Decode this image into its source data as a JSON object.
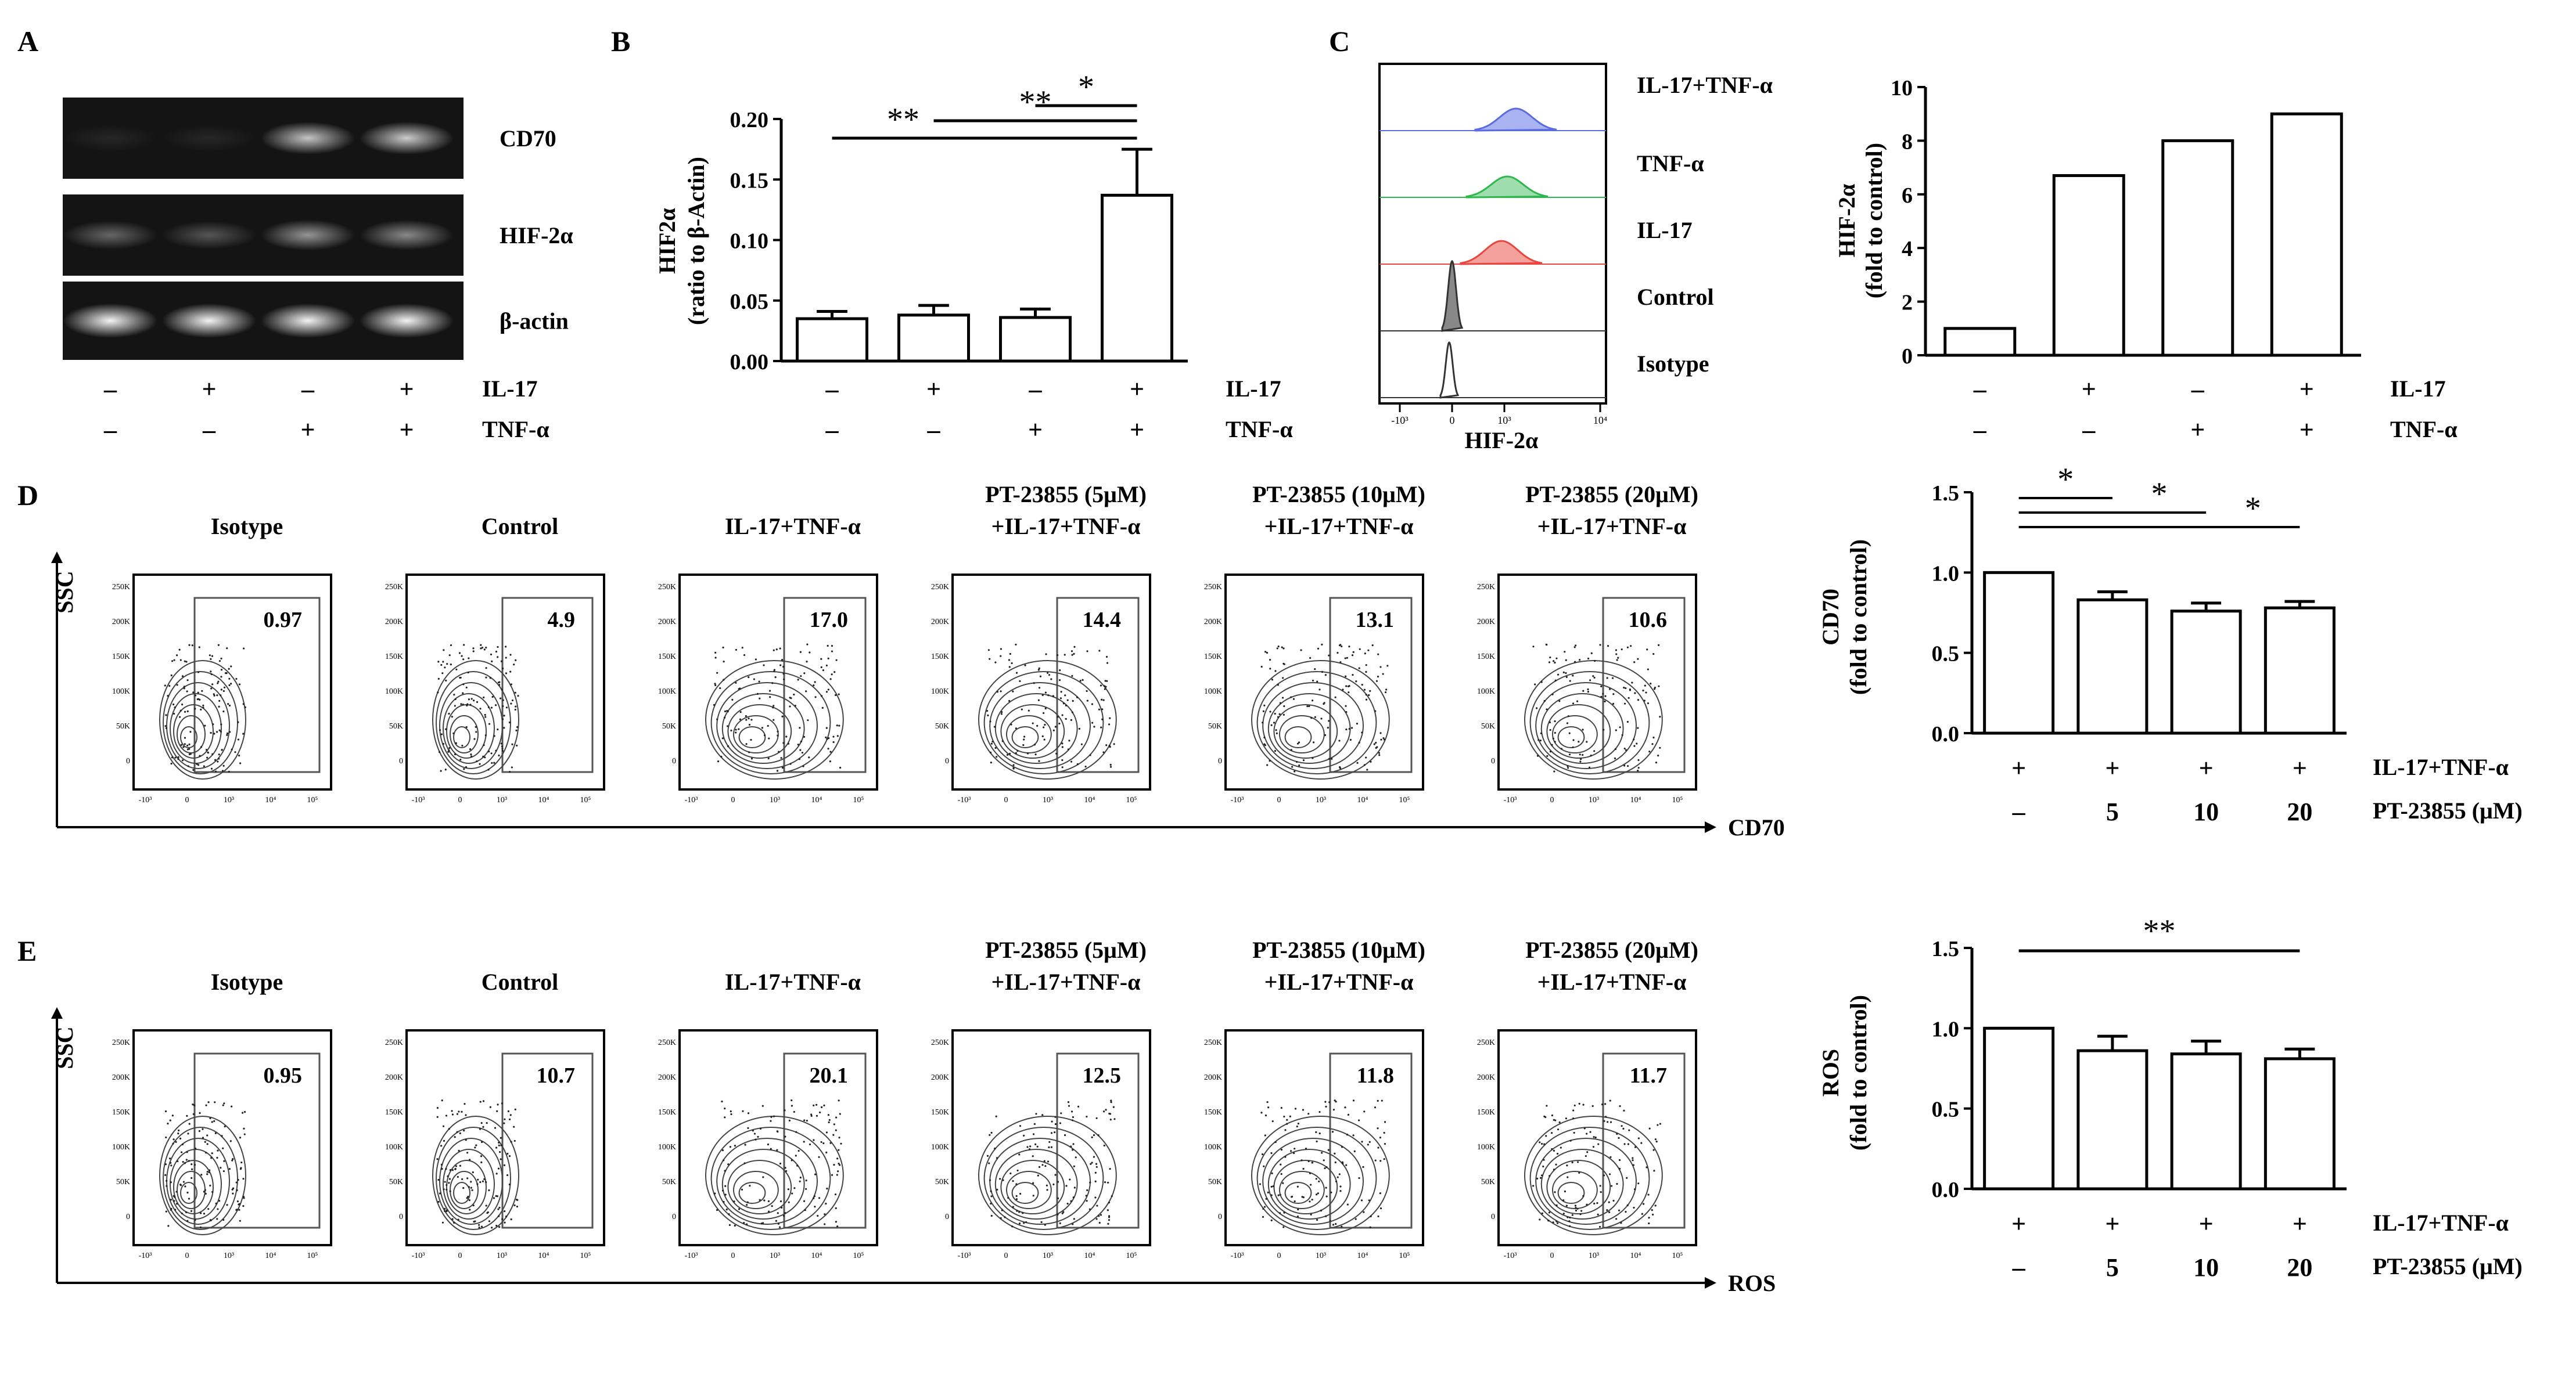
{
  "panels": {
    "a": {
      "letter": "A",
      "bands": [
        "CD70",
        "HIF-2α",
        "β-actin"
      ],
      "lanes": [
        {
          "il17": "–",
          "tnf": "–"
        },
        {
          "il17": "+",
          "tnf": "–"
        },
        {
          "il17": "–",
          "tnf": "+"
        },
        {
          "il17": "+",
          "tnf": "+"
        }
      ],
      "band_intensity": {
        "CD70": [
          0.08,
          0.08,
          0.75,
          0.78
        ],
        "HIF-2α": [
          0.35,
          0.28,
          0.55,
          0.5
        ],
        "β-actin": [
          0.95,
          0.95,
          0.95,
          0.95
        ]
      },
      "row_labels": {
        "il17": "IL-17",
        "tnf": "TNF-α"
      }
    },
    "b": {
      "letter": "B",
      "ylabel_line1": "HIF2α",
      "ylabel_line2": "(ratio to β-Actin)",
      "sig_labels": [
        "**",
        "**",
        "*"
      ],
      "row_labels": {
        "il17": "IL-17",
        "tnf": "TNF-α"
      },
      "signs": [
        {
          "il17": "–",
          "tnf": "–"
        },
        {
          "il17": "+",
          "tnf": "–"
        },
        {
          "il17": "–",
          "tnf": "+"
        },
        {
          "il17": "+",
          "tnf": "+"
        }
      ]
    },
    "c": {
      "letter": "C",
      "hist_labels": [
        "IL-17+TNF-α",
        "TNF-α",
        "IL-17",
        "Control",
        "Isotype"
      ],
      "hist_colors": [
        "#5b6be0",
        "#2db84e",
        "#e8473f",
        "#333333",
        "#333333"
      ],
      "hist_fills": [
        "#a9b3f2",
        "#9fdcae",
        "#f4a19c",
        "#888888",
        "#ffffff"
      ],
      "xaxis_label": "HIF-2α",
      "xticks": [
        "-10³",
        "0",
        "10³",
        "10⁴"
      ],
      "ylabel_line1": "HIF-2α",
      "ylabel_line2": "(fold to control)",
      "row_labels": {
        "il17": "IL-17",
        "tnf": "TNF-α"
      },
      "signs": [
        {
          "il17": "–",
          "tnf": "–"
        },
        {
          "il17": "+",
          "tnf": "–"
        },
        {
          "il17": "–",
          "tnf": "+"
        },
        {
          "il17": "+",
          "tnf": "+"
        }
      ]
    },
    "d": {
      "letter": "D",
      "plots": [
        {
          "title1": "Isotype",
          "title2": "",
          "pct": "0.97"
        },
        {
          "title1": "Control",
          "title2": "",
          "pct": "4.9"
        },
        {
          "title1": "IL-17+TNF-α",
          "title2": "",
          "pct": "17.0"
        },
        {
          "title1": "PT-23855 (5μM)",
          "title2": "+IL-17+TNF-α",
          "pct": "14.4"
        },
        {
          "title1": "PT-23855 (10μM)",
          "title2": "+IL-17+TNF-α",
          "pct": "13.1"
        },
        {
          "title1": "PT-23855 (20μM)",
          "title2": "+IL-17+TNF-α",
          "pct": "10.6"
        }
      ],
      "y_axis": "SSC",
      "x_axis": "CD70",
      "ylabel_line1": "CD70",
      "ylabel_line2": "(fold to control)",
      "sig_labels": [
        "*",
        "*",
        "*"
      ],
      "row1_label": "IL-17+TNF-α",
      "row2_label": "PT-23855 (μM)",
      "row1": [
        "+",
        "+",
        "+",
        "+"
      ],
      "row2": [
        "–",
        "5",
        "10",
        "20"
      ]
    },
    "e": {
      "letter": "E",
      "plots": [
        {
          "title1": "Isotype",
          "title2": "",
          "pct": "0.95"
        },
        {
          "title1": "Control",
          "title2": "",
          "pct": "10.7"
        },
        {
          "title1": "IL-17+TNF-α",
          "title2": "",
          "pct": "20.1"
        },
        {
          "title1": "PT-23855 (5μM)",
          "title2": "+IL-17+TNF-α",
          "pct": "12.5"
        },
        {
          "title1": "PT-23855 (10μM)",
          "title2": "+IL-17+TNF-α",
          "pct": "11.8"
        },
        {
          "title1": "PT-23855 (20μM)",
          "title2": "+IL-17+TNF-α",
          "pct": "11.7"
        }
      ],
      "y_axis": "SSC",
      "x_axis": "ROS",
      "ylabel_line1": "ROS",
      "ylabel_line2": "(fold to control)",
      "sig_labels": [
        "**"
      ],
      "row1_label": "IL-17+TNF-α",
      "row2_label": "PT-23855 (μM)",
      "row1": [
        "+",
        "+",
        "+",
        "+"
      ],
      "row2": [
        "–",
        "5",
        "10",
        "20"
      ]
    },
    "facs_yticks": [
      "250K",
      "200K",
      "150K",
      "100K",
      "50K",
      "0"
    ],
    "facs_xticks": [
      "-10³",
      "0",
      "10³",
      "10⁴",
      "10⁵"
    ]
  },
  "chart_data": [
    {
      "id": "B",
      "type": "bar",
      "categories": [
        "Control",
        "IL-17",
        "TNF-α",
        "IL-17+TNF-α"
      ],
      "values": [
        0.035,
        0.038,
        0.036,
        0.137
      ],
      "errors": [
        0.006,
        0.008,
        0.007,
        0.038
      ],
      "ylim": [
        0,
        0.2
      ],
      "yticks": [
        0.0,
        0.05,
        0.1,
        0.15,
        0.2
      ],
      "ytick_labels": [
        "0.00",
        "0.05",
        "0.10",
        "0.15",
        "0.20"
      ],
      "ylabel": "HIF2α (ratio to β-Actin)",
      "significance": [
        {
          "from": 0,
          "to": 3,
          "label": "**"
        },
        {
          "from": 1,
          "to": 3,
          "label": "**"
        },
        {
          "from": 2,
          "to": 3,
          "label": "*"
        }
      ]
    },
    {
      "id": "C",
      "type": "bar",
      "categories": [
        "Control",
        "IL-17",
        "TNF-α",
        "IL-17+TNF-α"
      ],
      "values": [
        1.0,
        6.7,
        8.0,
        9.0
      ],
      "ylim": [
        0,
        10
      ],
      "yticks": [
        0,
        2,
        4,
        6,
        8,
        10
      ],
      "ytick_labels": [
        "0",
        "2",
        "4",
        "6",
        "8",
        "10"
      ],
      "ylabel": "HIF-2α (fold to control)"
    },
    {
      "id": "D",
      "type": "bar",
      "categories": [
        "IL-17+TNF-α",
        "+5 μM PT-23855",
        "+10 μM PT-23855",
        "+20 μM PT-23855"
      ],
      "values": [
        1.0,
        0.83,
        0.76,
        0.78
      ],
      "errors": [
        0,
        0.05,
        0.05,
        0.04
      ],
      "ylim": [
        0,
        1.5
      ],
      "yticks": [
        0,
        0.5,
        1.0,
        1.5
      ],
      "ytick_labels": [
        "0.0",
        "0.5",
        "1.0",
        "1.5"
      ],
      "ylabel": "CD70 (fold to control)",
      "significance": [
        {
          "from": 0,
          "to": 1,
          "label": "*"
        },
        {
          "from": 0,
          "to": 2,
          "label": "*"
        },
        {
          "from": 0,
          "to": 3,
          "label": "*"
        }
      ]
    },
    {
      "id": "E",
      "type": "bar",
      "categories": [
        "IL-17+TNF-α",
        "+5 μM PT-23855",
        "+10 μM PT-23855",
        "+20 μM PT-23855"
      ],
      "values": [
        1.0,
        0.86,
        0.84,
        0.81
      ],
      "errors": [
        0,
        0.09,
        0.08,
        0.06
      ],
      "ylim": [
        0,
        1.5
      ],
      "yticks": [
        0,
        0.5,
        1.0,
        1.5
      ],
      "ytick_labels": [
        "0.0",
        "0.5",
        "1.0",
        "1.5"
      ],
      "ylabel": "ROS (fold to control)",
      "significance": [
        {
          "from": 0,
          "to": 3,
          "label": "**"
        }
      ]
    }
  ]
}
